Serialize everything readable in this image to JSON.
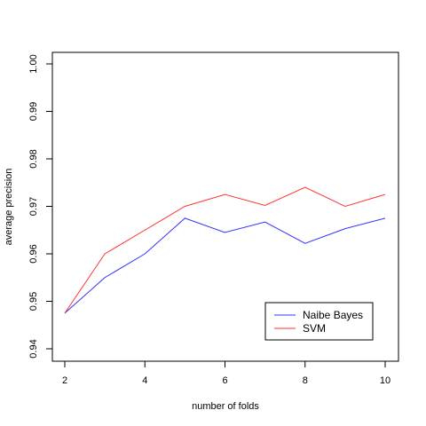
{
  "chart_data": {
    "type": "line",
    "title": "",
    "xlabel": "number of folds",
    "ylabel": "average precision",
    "x": [
      2,
      3,
      4,
      5,
      6,
      7,
      8,
      9,
      10
    ],
    "xlim": [
      2,
      10
    ],
    "ylim": [
      0.94,
      1.0
    ],
    "xticks": [
      2,
      4,
      6,
      8,
      10
    ],
    "yticks": [
      "0.94",
      "0.95",
      "0.96",
      "0.97",
      "0.98",
      "0.99",
      "1.00"
    ],
    "grid": false,
    "legend_position": "bottom-right",
    "series": [
      {
        "name": "Naibe Bayes",
        "color": "#3333ff",
        "values": [
          0.9475,
          0.955,
          0.96,
          0.9675,
          0.9645,
          0.9667,
          0.9622,
          0.9653,
          0.9675
        ]
      },
      {
        "name": "SVM",
        "color": "#ff3333",
        "values": [
          0.9475,
          0.96,
          0.965,
          0.97,
          0.9725,
          0.9702,
          0.974,
          0.97,
          0.9725
        ]
      }
    ]
  }
}
